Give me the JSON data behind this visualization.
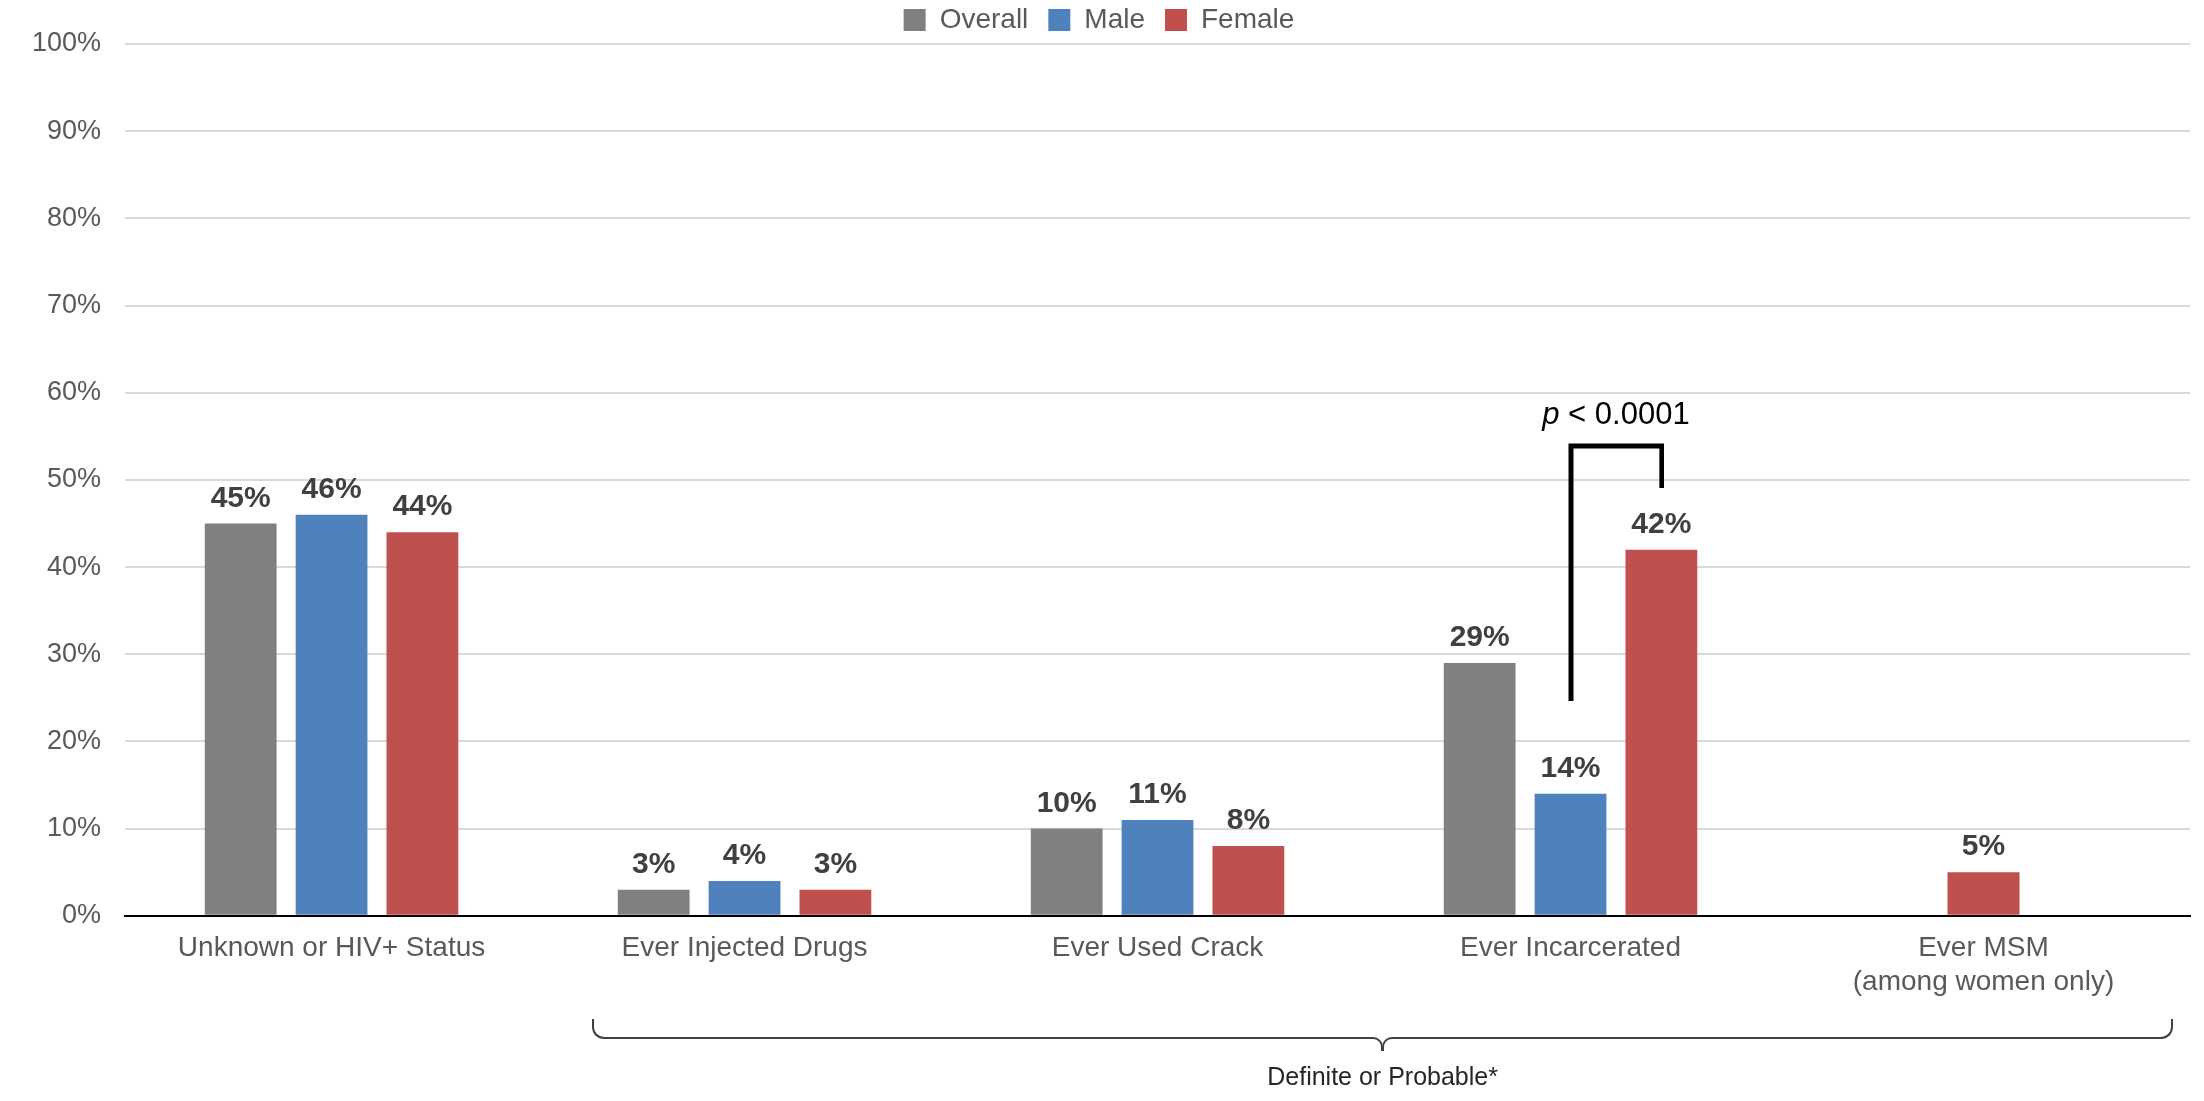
{
  "chart_data": {
    "type": "bar",
    "categories": [
      "Unknown or HIV+ Status",
      "Ever Injected Drugs",
      "Ever Used Crack",
      "Ever Incarcerated",
      "Ever MSM\n(among women only)"
    ],
    "series": [
      {
        "name": "Overall",
        "color": "#808080",
        "values": [
          45,
          3,
          10,
          29,
          null
        ],
        "value_labels": [
          "45%",
          "3%",
          "10%",
          "29%",
          null
        ]
      },
      {
        "name": "Male",
        "color": "#4f81bd",
        "values": [
          46,
          4,
          11,
          14,
          null
        ],
        "value_labels": [
          "46%",
          "4%",
          "11%",
          "14%",
          null
        ]
      },
      {
        "name": "Female",
        "color": "#c0504d",
        "values": [
          44,
          3,
          8,
          42,
          5
        ],
        "value_labels": [
          "44%",
          "3%",
          "8%",
          "42%",
          "5%"
        ]
      }
    ],
    "ylim": [
      0,
      100
    ],
    "yticks": [
      {
        "value": 0,
        "label": "0%"
      },
      {
        "value": 10,
        "label": "10%"
      },
      {
        "value": 20,
        "label": "20%"
      },
      {
        "value": 30,
        "label": "30%"
      },
      {
        "value": 40,
        "label": "40%"
      },
      {
        "value": 50,
        "label": "50%"
      },
      {
        "value": 60,
        "label": "60%"
      },
      {
        "value": 70,
        "label": "70%"
      },
      {
        "value": 80,
        "label": "80%"
      },
      {
        "value": 90,
        "label": "90%"
      },
      {
        "value": 100,
        "label": "100%"
      }
    ],
    "grid": "y",
    "legend": "top",
    "annotations": [
      "p < 0.0001",
      "Definite or Probable*"
    ]
  }
}
